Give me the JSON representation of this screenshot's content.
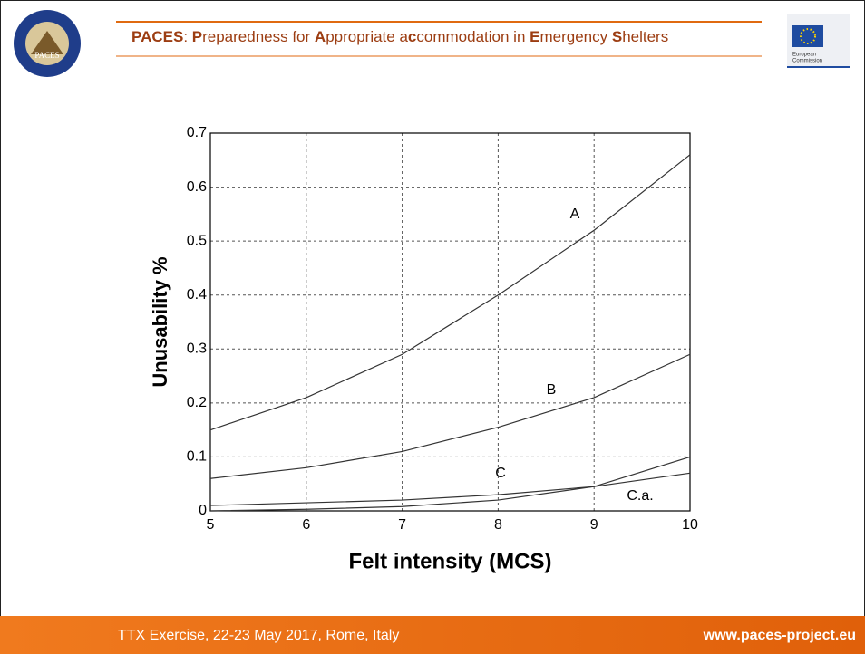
{
  "header": {
    "title_parts": [
      "PACES",
      ": ",
      "P",
      "reparedness for ",
      "A",
      "ppropriate a",
      "c",
      "commodation in ",
      "E",
      "mergency ",
      "S",
      "helters"
    ],
    "logo_text": "PACES",
    "eu_label": [
      "European",
      "Commission"
    ]
  },
  "chart_data": {
    "type": "line",
    "xlabel": "Felt intensity (MCS)",
    "ylabel": "Unusability %",
    "x": [
      5,
      6,
      7,
      8,
      9,
      10
    ],
    "series": [
      {
        "name": "A",
        "color": "#333333",
        "values": [
          0.15,
          0.21,
          0.29,
          0.4,
          0.52,
          0.66
        ]
      },
      {
        "name": "B",
        "color": "#333333",
        "values": [
          0.06,
          0.08,
          0.11,
          0.155,
          0.21,
          0.29
        ]
      },
      {
        "name": "C",
        "color": "#333333",
        "values": [
          0.01,
          0.015,
          0.02,
          0.03,
          0.045,
          0.07
        ]
      },
      {
        "name": "C.a.",
        "color": "#333333",
        "values": [
          0,
          0.003,
          0.008,
          0.02,
          0.045,
          0.1
        ]
      }
    ],
    "xlim": [
      5,
      10
    ],
    "xticks": [
      5,
      6,
      7,
      8,
      9,
      10
    ],
    "ylim": [
      0,
      0.7
    ],
    "yticks": [
      0,
      0.1,
      0.2,
      0.3,
      0.4,
      0.5,
      0.6,
      0.7
    ],
    "grid": true
  },
  "footer": {
    "left": "TTX Exercise, 22-23 May 2017, Rome, Italy",
    "right": "www.paces-project.eu"
  }
}
